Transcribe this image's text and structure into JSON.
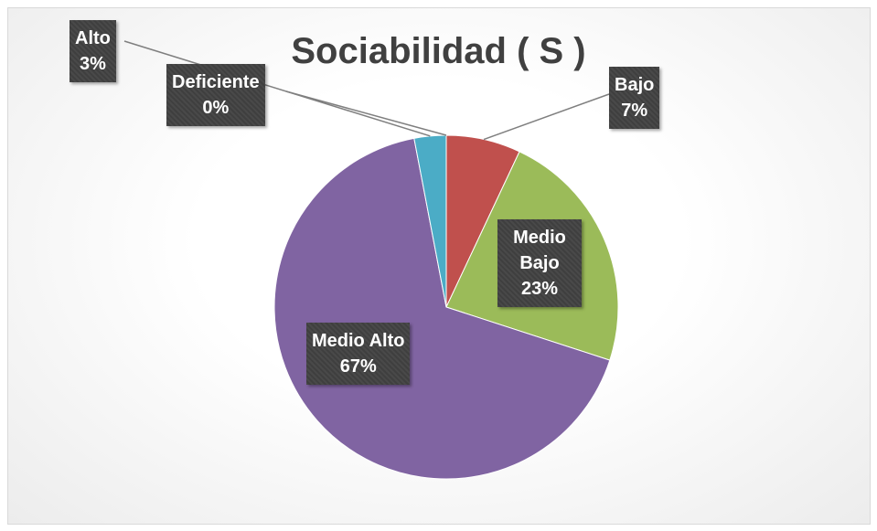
{
  "chart_data": {
    "type": "pie",
    "title": "Sociabilidad ( S )",
    "categories": [
      "Deficiente",
      "Bajo",
      "Medio Bajo",
      "Medio Alto",
      "Alto"
    ],
    "values": [
      0,
      7,
      23,
      67,
      3
    ],
    "value_labels": [
      "0%",
      "7%",
      "23%",
      "67%",
      "3%"
    ],
    "colors": [
      "#4f81bd",
      "#c0504d",
      "#9bbb59",
      "#8064a2",
      "#4bacc6"
    ]
  }
}
